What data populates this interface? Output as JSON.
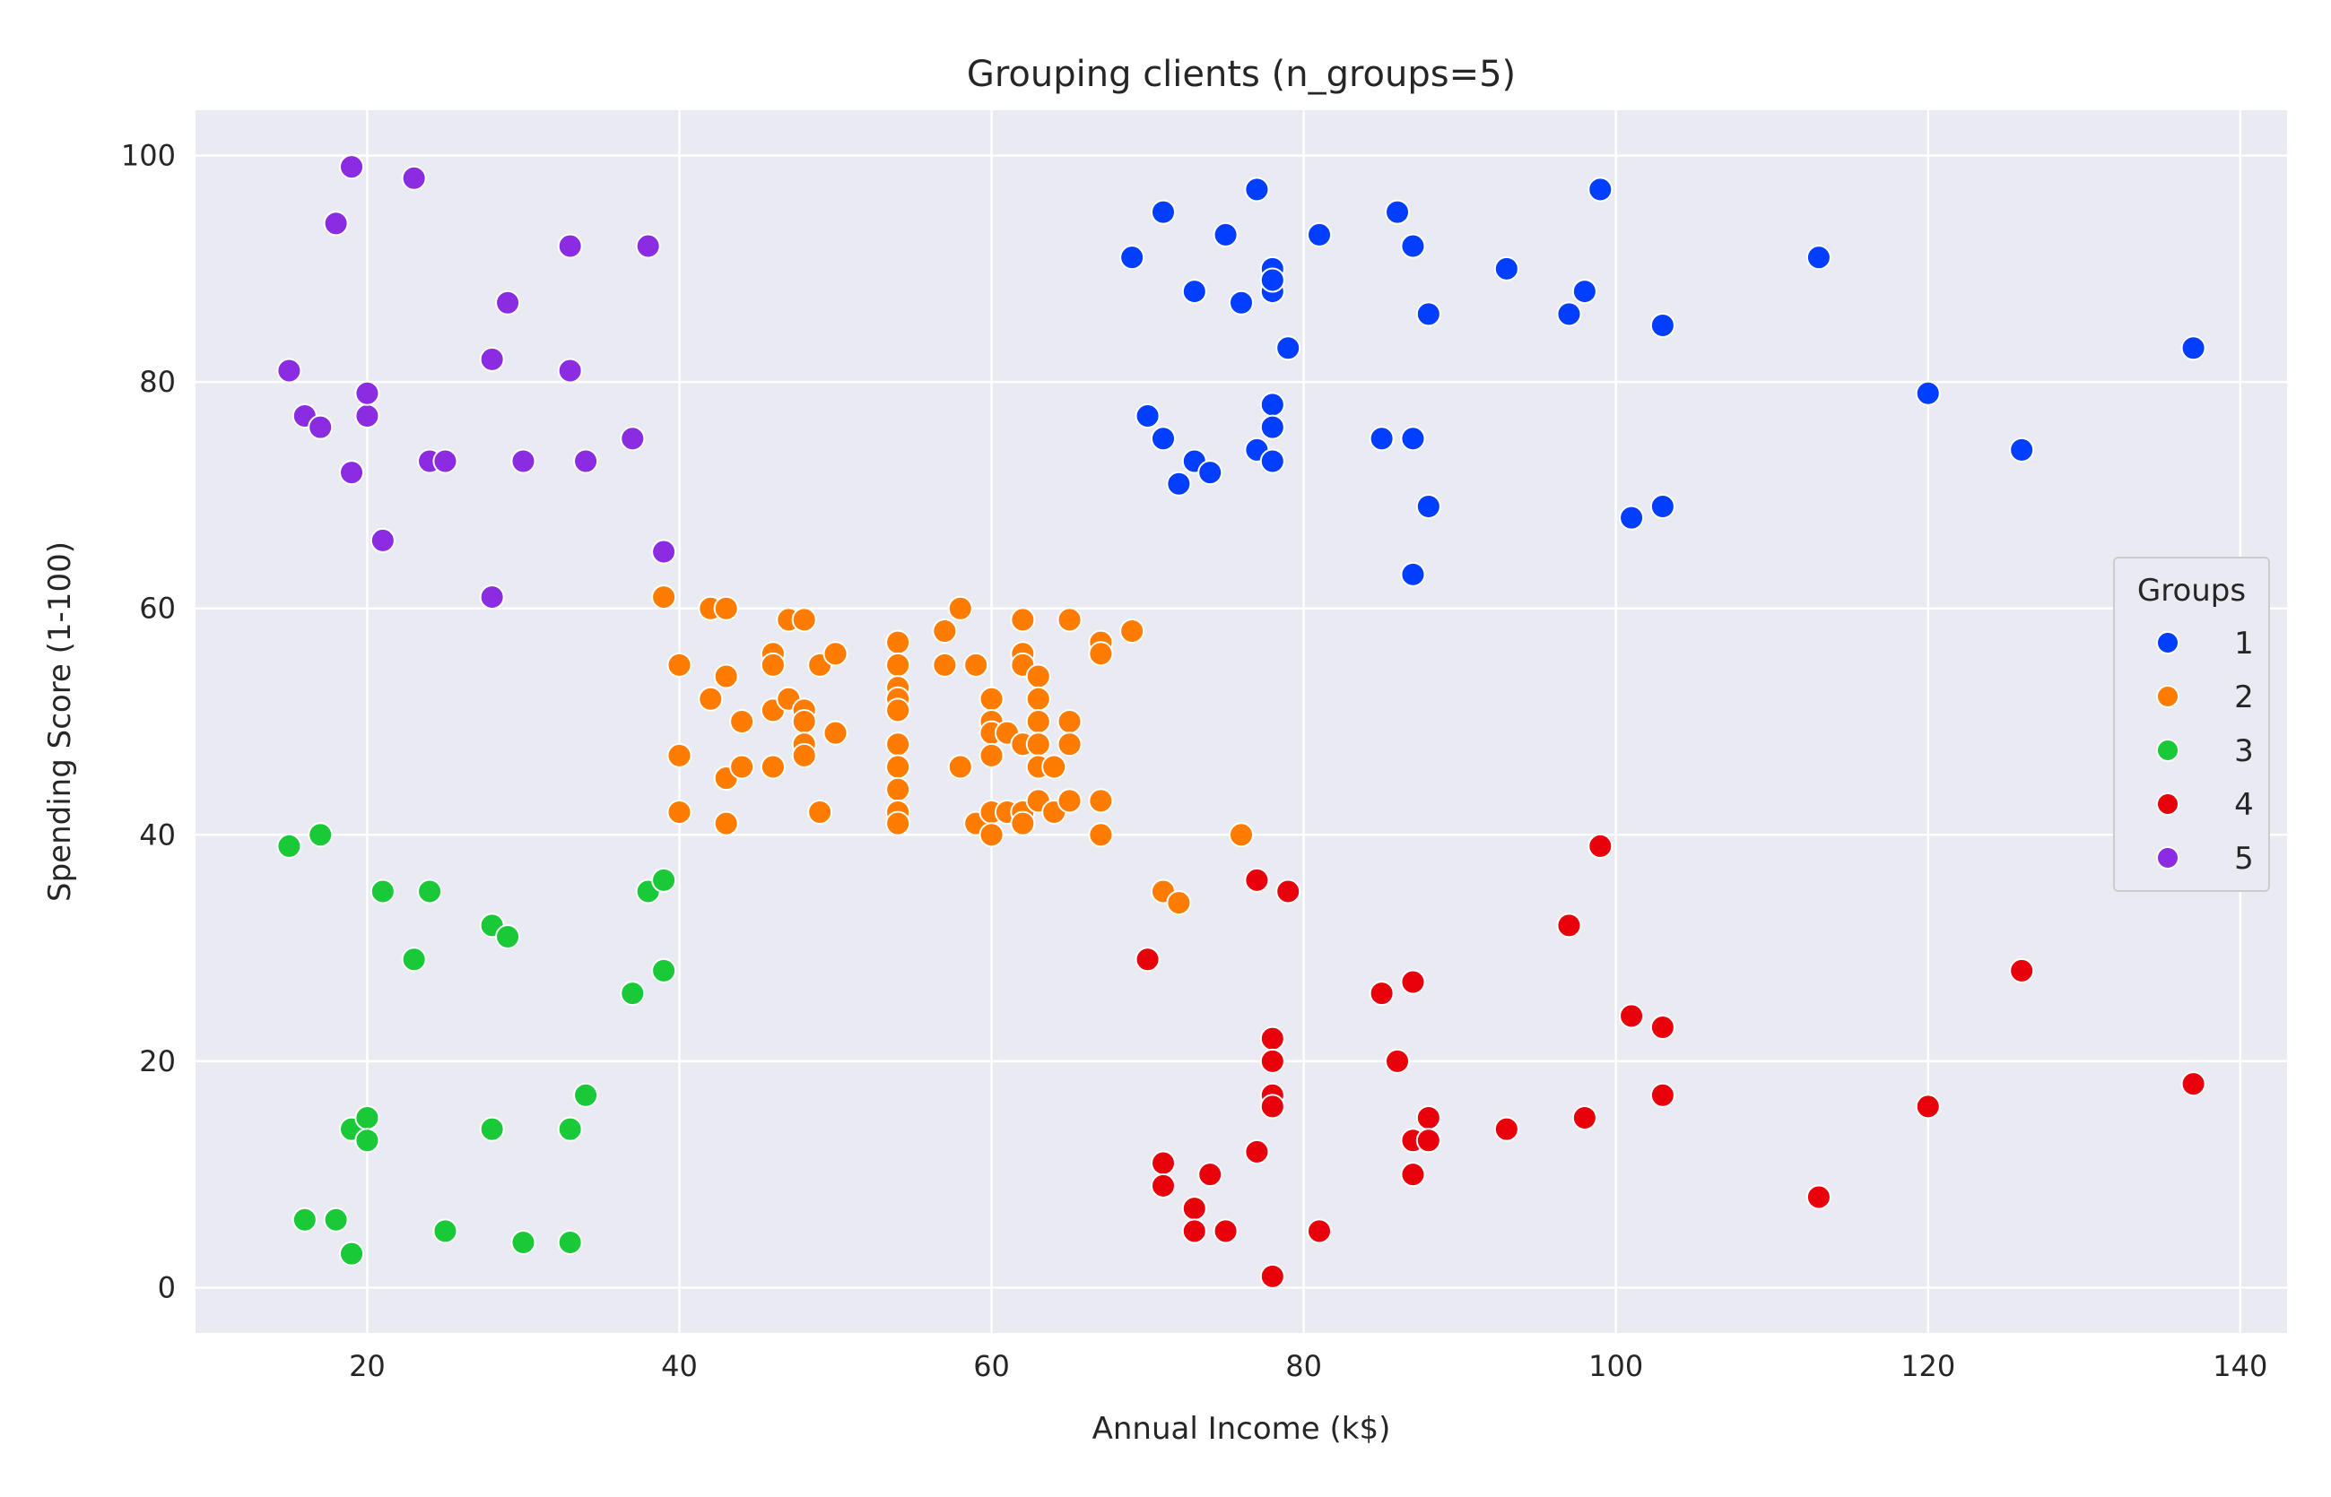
{
  "chart_data": {
    "type": "scatter",
    "title": "Grouping clients (n_groups=5)",
    "xlabel": "Annual Income (k$)",
    "ylabel": "Spending Score (1-100)",
    "xlim": [
      9,
      143
    ],
    "ylim": [
      -4,
      104
    ],
    "xticks": [
      20,
      40,
      60,
      80,
      100,
      120,
      140
    ],
    "yticks": [
      0,
      20,
      40,
      60,
      80,
      100
    ],
    "grid": true,
    "background": "#eaeaf2",
    "legend": {
      "title": "Groups",
      "placement": "right"
    },
    "series": [
      {
        "name": "1",
        "color": "#023eff",
        "points": [
          [
            69,
            91
          ],
          [
            71,
            95
          ],
          [
            73,
            88
          ],
          [
            75,
            93
          ],
          [
            76,
            87
          ],
          [
            77,
            97
          ],
          [
            78,
            90
          ],
          [
            78,
            88
          ],
          [
            78,
            89
          ],
          [
            79,
            83
          ],
          [
            81,
            93
          ],
          [
            86,
            95
          ],
          [
            87,
            92
          ],
          [
            88,
            86
          ],
          [
            93,
            90
          ],
          [
            97,
            86
          ],
          [
            98,
            88
          ],
          [
            99,
            97
          ],
          [
            103,
            85
          ],
          [
            113,
            91
          ],
          [
            70,
            77
          ],
          [
            71,
            75
          ],
          [
            72,
            71
          ],
          [
            73,
            73
          ],
          [
            74,
            72
          ],
          [
            77,
            74
          ],
          [
            78,
            78
          ],
          [
            78,
            76
          ],
          [
            78,
            73
          ],
          [
            85,
            75
          ],
          [
            87,
            75
          ],
          [
            87,
            63
          ],
          [
            88,
            69
          ],
          [
            101,
            68
          ],
          [
            103,
            69
          ],
          [
            120,
            79
          ],
          [
            126,
            74
          ],
          [
            137,
            83
          ]
        ]
      },
      {
        "name": "2",
        "color": "#ff7c00",
        "points": [
          [
            39,
            61
          ],
          [
            40,
            55
          ],
          [
            40,
            47
          ],
          [
            40,
            42
          ],
          [
            42,
            60
          ],
          [
            42,
            52
          ],
          [
            43,
            60
          ],
          [
            43,
            54
          ],
          [
            43,
            45
          ],
          [
            43,
            41
          ],
          [
            44,
            50
          ],
          [
            44,
            46
          ],
          [
            46,
            56
          ],
          [
            46,
            55
          ],
          [
            46,
            51
          ],
          [
            46,
            46
          ],
          [
            47,
            59
          ],
          [
            47,
            52
          ],
          [
            48,
            59
          ],
          [
            48,
            51
          ],
          [
            48,
            50
          ],
          [
            48,
            48
          ],
          [
            48,
            47
          ],
          [
            49,
            55
          ],
          [
            49,
            42
          ],
          [
            50,
            56
          ],
          [
            50,
            49
          ],
          [
            54,
            57
          ],
          [
            54,
            55
          ],
          [
            54,
            53
          ],
          [
            54,
            52
          ],
          [
            54,
            51
          ],
          [
            54,
            48
          ],
          [
            54,
            46
          ],
          [
            54,
            44
          ],
          [
            54,
            42
          ],
          [
            54,
            41
          ],
          [
            57,
            58
          ],
          [
            57,
            55
          ],
          [
            58,
            60
          ],
          [
            58,
            46
          ],
          [
            59,
            55
          ],
          [
            59,
            41
          ],
          [
            60,
            52
          ],
          [
            60,
            50
          ],
          [
            60,
            49
          ],
          [
            60,
            47
          ],
          [
            60,
            42
          ],
          [
            60,
            40
          ],
          [
            61,
            49
          ],
          [
            61,
            42
          ],
          [
            62,
            59
          ],
          [
            62,
            56
          ],
          [
            62,
            55
          ],
          [
            62,
            48
          ],
          [
            62,
            42
          ],
          [
            62,
            41
          ],
          [
            63,
            54
          ],
          [
            63,
            52
          ],
          [
            63,
            50
          ],
          [
            63,
            48
          ],
          [
            63,
            46
          ],
          [
            63,
            43
          ],
          [
            64,
            46
          ],
          [
            64,
            42
          ],
          [
            65,
            59
          ],
          [
            65,
            50
          ],
          [
            65,
            48
          ],
          [
            65,
            43
          ],
          [
            67,
            57
          ],
          [
            67,
            56
          ],
          [
            67,
            43
          ],
          [
            67,
            40
          ],
          [
            69,
            58
          ],
          [
            71,
            35
          ],
          [
            72,
            34
          ],
          [
            76,
            40
          ]
        ]
      },
      {
        "name": "3",
        "color": "#1ac938",
        "points": [
          [
            15,
            39
          ],
          [
            16,
            6
          ],
          [
            17,
            40
          ],
          [
            18,
            6
          ],
          [
            19,
            14
          ],
          [
            19,
            3
          ],
          [
            20,
            15
          ],
          [
            20,
            13
          ],
          [
            21,
            35
          ],
          [
            23,
            29
          ],
          [
            24,
            35
          ],
          [
            25,
            5
          ],
          [
            28,
            32
          ],
          [
            28,
            14
          ],
          [
            29,
            31
          ],
          [
            30,
            4
          ],
          [
            33,
            14
          ],
          [
            33,
            4
          ],
          [
            34,
            17
          ],
          [
            37,
            26
          ],
          [
            38,
            35
          ],
          [
            39,
            36
          ],
          [
            39,
            28
          ]
        ]
      },
      {
        "name": "4",
        "color": "#e8000b",
        "points": [
          [
            70,
            29
          ],
          [
            71,
            11
          ],
          [
            71,
            9
          ],
          [
            73,
            7
          ],
          [
            73,
            5
          ],
          [
            74,
            10
          ],
          [
            75,
            5
          ],
          [
            77,
            36
          ],
          [
            77,
            12
          ],
          [
            78,
            22
          ],
          [
            78,
            20
          ],
          [
            78,
            17
          ],
          [
            78,
            16
          ],
          [
            78,
            1
          ],
          [
            79,
            35
          ],
          [
            81,
            5
          ],
          [
            85,
            26
          ],
          [
            86,
            20
          ],
          [
            87,
            27
          ],
          [
            87,
            13
          ],
          [
            87,
            10
          ],
          [
            88,
            15
          ],
          [
            88,
            13
          ],
          [
            93,
            14
          ],
          [
            97,
            32
          ],
          [
            98,
            15
          ],
          [
            99,
            39
          ],
          [
            101,
            24
          ],
          [
            103,
            23
          ],
          [
            103,
            17
          ],
          [
            113,
            8
          ],
          [
            120,
            16
          ],
          [
            126,
            28
          ],
          [
            137,
            18
          ]
        ]
      },
      {
        "name": "5",
        "color": "#8b2be2",
        "points": [
          [
            15,
            81
          ],
          [
            16,
            77
          ],
          [
            17,
            76
          ],
          [
            18,
            94
          ],
          [
            19,
            99
          ],
          [
            19,
            72
          ],
          [
            20,
            77
          ],
          [
            20,
            79
          ],
          [
            21,
            66
          ],
          [
            23,
            98
          ],
          [
            24,
            73
          ],
          [
            25,
            73
          ],
          [
            28,
            82
          ],
          [
            28,
            61
          ],
          [
            29,
            87
          ],
          [
            30,
            73
          ],
          [
            33,
            92
          ],
          [
            33,
            81
          ],
          [
            34,
            73
          ],
          [
            37,
            75
          ],
          [
            38,
            92
          ],
          [
            39,
            65
          ]
        ]
      }
    ]
  }
}
